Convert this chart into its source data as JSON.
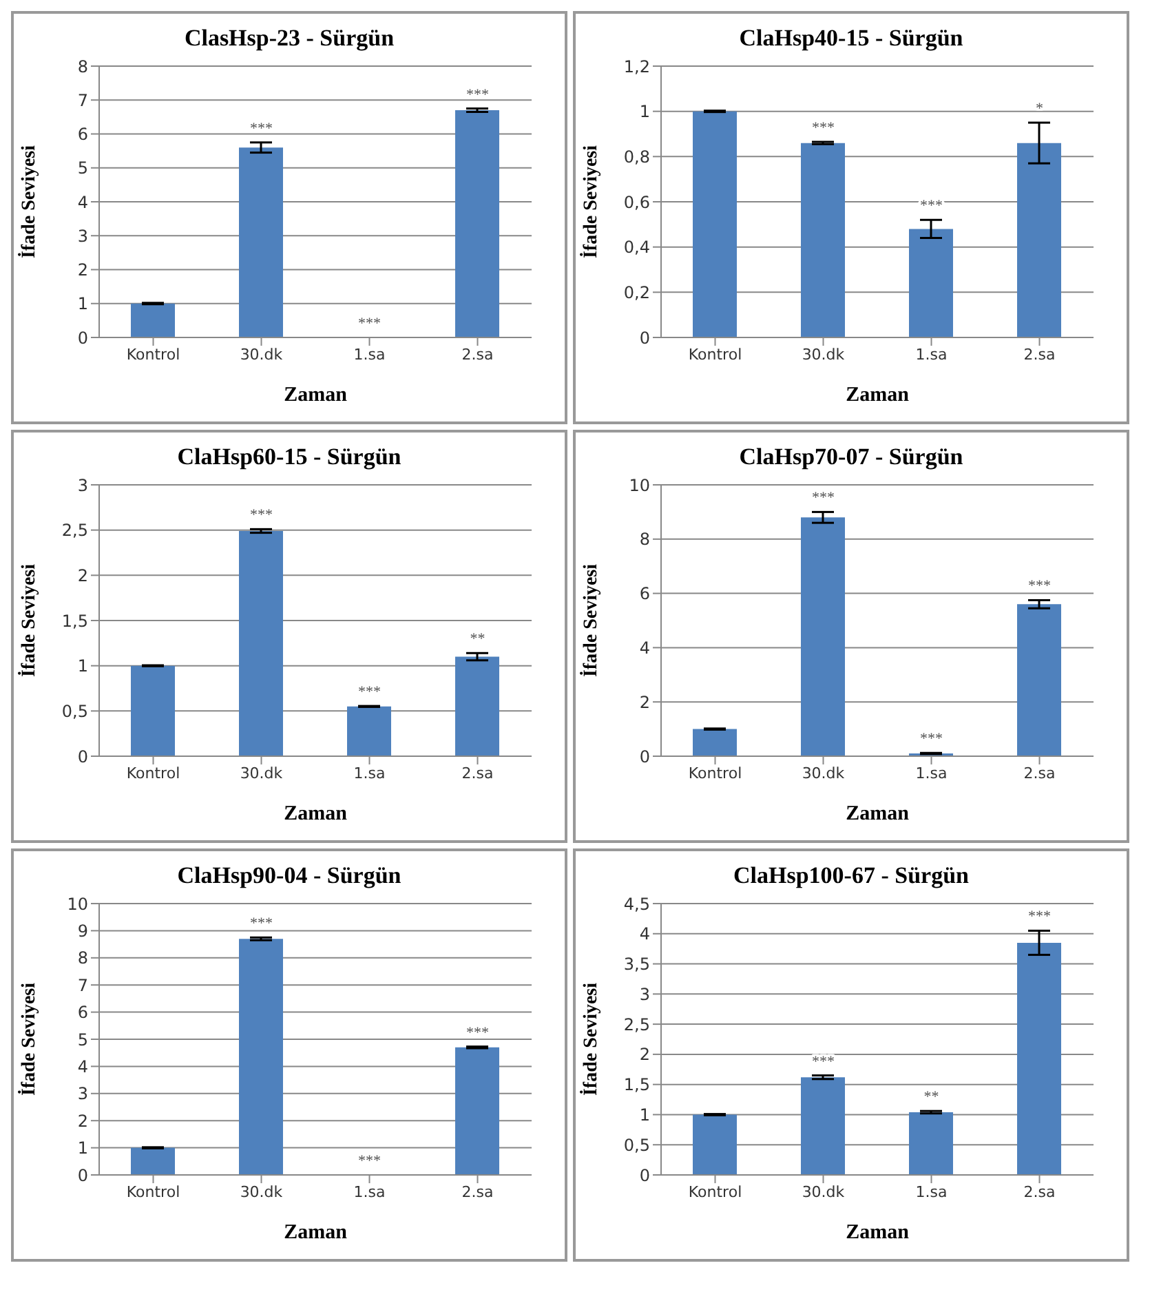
{
  "chart_data": [
    {
      "type": "bar",
      "title": "ClasHsp-23 - Sürgün",
      "xlabel": "Zaman",
      "ylabel": "İfade Seviyesi",
      "categories": [
        "Kontrol",
        "30.dk",
        "1.sa",
        "2.sa"
      ],
      "values": [
        1.0,
        5.6,
        0,
        6.7
      ],
      "errors": [
        0.02,
        0.15,
        null,
        0.05
      ],
      "value_labels": [
        null,
        "***",
        "***",
        "***"
      ],
      "color": "#4f81bd",
      "ylim": [
        0,
        8
      ],
      "yticks": [
        0,
        1,
        2,
        3,
        4,
        5,
        6,
        7,
        8
      ],
      "grid": "y"
    },
    {
      "type": "bar",
      "title": "ClaHsp40-15 - Sürgün",
      "xlabel": "Zaman",
      "ylabel": "İfade Seviyesi",
      "categories": [
        "Kontrol",
        "30.dk",
        "1.sa",
        "2.sa"
      ],
      "values": [
        1.0,
        0.86,
        0.48,
        0.86
      ],
      "errors": [
        0.003,
        0.005,
        0.04,
        0.09
      ],
      "value_labels": [
        null,
        "***",
        "***",
        "*"
      ],
      "color": "#4f81bd",
      "ylim": [
        0,
        1.2
      ],
      "yticks": [
        0,
        {
          "value": 0.2,
          "label": "0,2"
        },
        {
          "value": 0.4,
          "label": "0,4"
        },
        {
          "value": 0.6,
          "label": "0,6"
        },
        {
          "value": 0.8,
          "label": "0,8"
        },
        1,
        {
          "value": 1.2,
          "label": "1,2"
        }
      ],
      "grid": "y"
    },
    {
      "type": "bar",
      "title": "ClaHsp60-15 - Sürgün",
      "xlabel": "Zaman",
      "ylabel": "İfade Seviyesi",
      "categories": [
        "Kontrol",
        "30.dk",
        "1.sa",
        "2.sa"
      ],
      "values": [
        1.0,
        2.49,
        0.55,
        1.1
      ],
      "errors": [
        0.005,
        0.02,
        0.005,
        0.04
      ],
      "value_labels": [
        null,
        "***",
        "***",
        "**"
      ],
      "color": "#4f81bd",
      "ylim": [
        0,
        3
      ],
      "yticks": [
        0,
        {
          "value": 0.5,
          "label": "0,5"
        },
        1,
        {
          "value": 1.5,
          "label": "1,5"
        },
        2,
        {
          "value": 2.5,
          "label": "2,5"
        },
        3
      ],
      "grid": "y"
    },
    {
      "type": "bar",
      "title": "ClaHsp70-07 - Sürgün",
      "xlabel": "Zaman",
      "ylabel": "İfade Seviyesi",
      "categories": [
        "Kontrol",
        "30.dk",
        "1.sa",
        "2.sa"
      ],
      "values": [
        1.0,
        8.8,
        0.1,
        5.6
      ],
      "errors": [
        0.02,
        0.2,
        0.02,
        0.15
      ],
      "value_labels": [
        null,
        "***",
        "***",
        "***"
      ],
      "color": "#4f81bd",
      "ylim": [
        0,
        10
      ],
      "yticks": [
        0,
        2,
        4,
        6,
        8,
        10
      ],
      "grid": "y"
    },
    {
      "type": "bar",
      "title": "ClaHsp90-04 - Sürgün",
      "xlabel": "Zaman",
      "ylabel": "İfade Seviyesi",
      "categories": [
        "Kontrol",
        "30.dk",
        "1.sa",
        "2.sa"
      ],
      "values": [
        1.0,
        8.7,
        0,
        4.7
      ],
      "errors": [
        0.02,
        0.05,
        null,
        0.03
      ],
      "value_labels": [
        null,
        "***",
        "***",
        "***"
      ],
      "color": "#4f81bd",
      "ylim": [
        0,
        10
      ],
      "yticks": [
        0,
        1,
        2,
        3,
        4,
        5,
        6,
        7,
        8,
        9,
        10
      ],
      "grid": "y"
    },
    {
      "type": "bar",
      "title": "ClaHsp100-67 - Sürgün",
      "xlabel": "Zaman",
      "ylabel": "İfade Seviyesi",
      "categories": [
        "Kontrol",
        "30.dk",
        "1.sa",
        "2.sa"
      ],
      "values": [
        1.0,
        1.62,
        1.04,
        3.85
      ],
      "errors": [
        0.01,
        0.03,
        0.02,
        0.2
      ],
      "value_labels": [
        null,
        "***",
        "**",
        "***"
      ],
      "color": "#4f81bd",
      "ylim": [
        0,
        4.5
      ],
      "yticks": [
        0,
        {
          "value": 0.5,
          "label": "0,5"
        },
        1,
        {
          "value": 1.5,
          "label": "1,5"
        },
        2,
        {
          "value": 2.5,
          "label": "2,5"
        },
        3,
        {
          "value": 3.5,
          "label": "3,5"
        },
        4,
        {
          "value": 4.5,
          "label": "4,5"
        }
      ],
      "grid": "y"
    }
  ]
}
